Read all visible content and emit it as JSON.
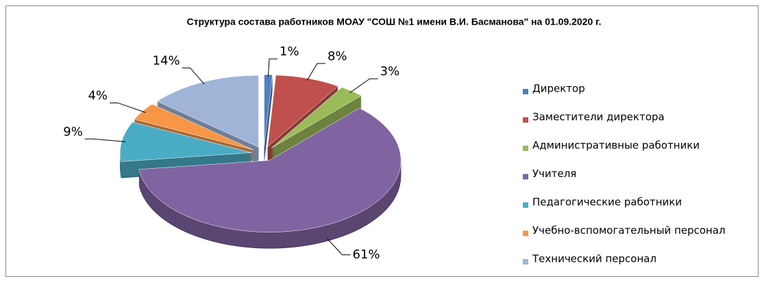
{
  "chart_data": {
    "type": "pie",
    "title": "Структура состава работников МОАУ \"СОШ №1 имени В.И. Басманова\" на 01.09.2020 г.",
    "categories": [
      "Директор",
      "Заместители директора",
      "Административные работники",
      "Учителя",
      "Педагогические работники",
      "Учебно-вспомогательный персонал",
      "Технический персонал"
    ],
    "values": [
      1,
      8,
      3,
      61,
      9,
      4,
      14
    ],
    "value_labels": [
      "1%",
      "8%",
      "3%",
      "61%",
      "9%",
      "4%",
      "14%"
    ],
    "colors": [
      "#4f81bd",
      "#c0504d",
      "#9bbb59",
      "#8064a2",
      "#4bacc6",
      "#f79646",
      "#a0b4d8"
    ],
    "legend": "right"
  }
}
